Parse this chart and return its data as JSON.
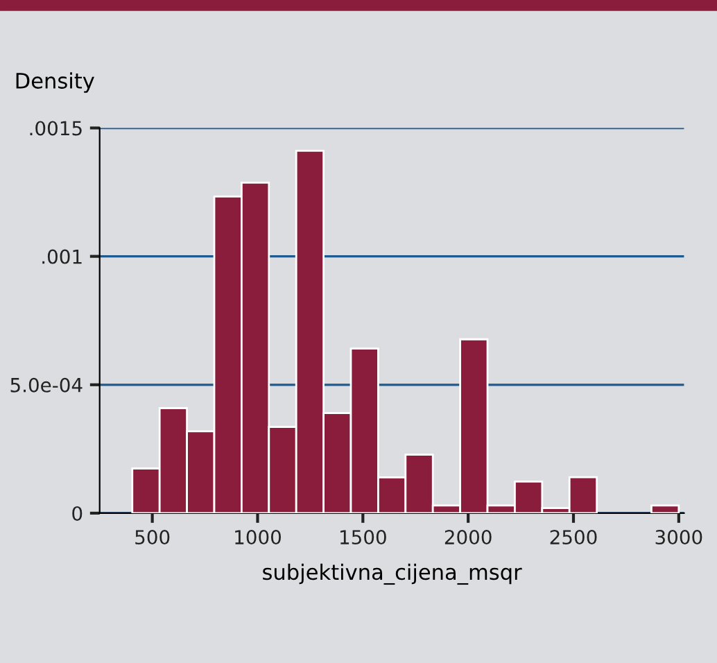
{
  "chart_data": {
    "type": "histogram",
    "xlabel": "subjektivna_cijena_msqr",
    "ylabel": "Density",
    "bins": [
      405,
      534.75,
      664.5,
      794.25,
      924,
      1053.75,
      1183.5,
      1313.25,
      1443,
      1572.75,
      1702.5,
      1832.25,
      1962,
      2091.75,
      2221.5,
      2351.25,
      2481,
      2610.75,
      2740.5,
      2870.25,
      3000
    ],
    "values": [
      0.000174,
      0.000409,
      0.000319,
      0.001233,
      0.001287,
      0.000336,
      0.001411,
      0.00039,
      0.000641,
      0.000139,
      0.000228,
      3e-05,
      0.000677,
      3e-05,
      0.000123,
      2e-05,
      0.00014,
      0,
      0,
      3e-05
    ],
    "color": "#8a1c3c",
    "xlim": [
      250,
      3025
    ],
    "xticks": [
      500,
      1000,
      1500,
      2000,
      2500,
      3000
    ],
    "ylim": [
      0,
      0.0015
    ],
    "yticks": [
      {
        "value": 0,
        "label": "0"
      },
      {
        "value": 0.0005,
        "label": "5.0e-04"
      },
      {
        "value": 0.001,
        "label": ".001"
      },
      {
        "value": 0.0015,
        "label": ".0015"
      }
    ],
    "grid": "y"
  }
}
